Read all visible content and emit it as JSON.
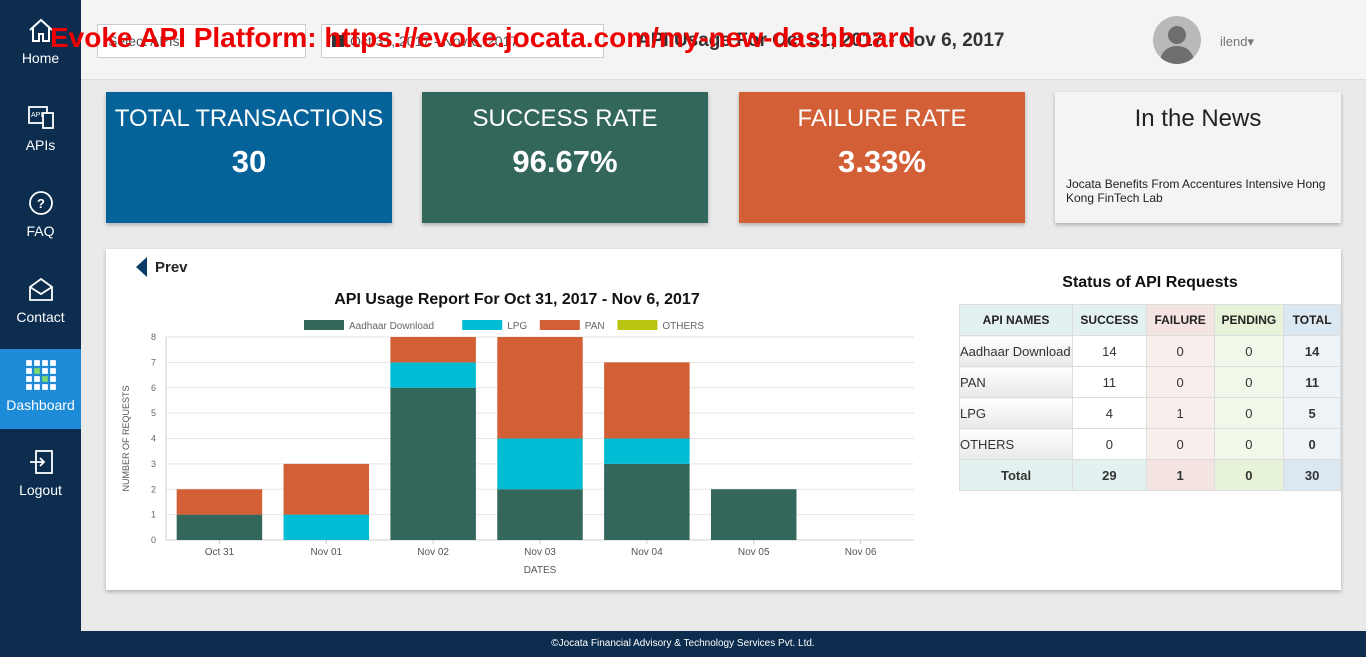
{
  "watermark": "Evoke API Platform: https://evoke.jocata.com/my-new-dashboard",
  "nav": {
    "home": "Home",
    "apis": "APIs",
    "faq": "FAQ",
    "contact": "Contact",
    "dashboard": "Dashboard",
    "logout": "Logout"
  },
  "header": {
    "select_api": "Select APIs",
    "date_range": "Oct 31, 2017 - Nov 6, 2017",
    "title": "API Usage For Oct 31, 2017 - Nov 6, 2017",
    "username": "ilend",
    "user_caret": "▾"
  },
  "cards": {
    "total_title": "TOTAL TRANSACTIONS",
    "total_value": "30",
    "success_title": "SUCCESS RATE",
    "success_value": "96.67%",
    "failure_title": "FAILURE RATE",
    "failure_value": "3.33%",
    "news_title": "In the News",
    "news_item": "Jocata Benefits From Accentures Intensive Hong Kong FinTech Lab"
  },
  "colors": {
    "total_card": "#06639a",
    "success_card": "#33675b",
    "failure_card": "#d25f36",
    "aadhaar": "#33675b",
    "lpg": "#00bcd4",
    "pan": "#d25f36",
    "others": "#b9c410"
  },
  "prev_label": "Prev",
  "chart_data": {
    "type": "bar",
    "stacked": true,
    "title": "API Usage Report For Oct 31, 2017 - Nov 6, 2017",
    "xlabel": "DATES",
    "ylabel": "NUMBER OF REQUESTS",
    "ylim": [
      0,
      8
    ],
    "yticks": [
      "0",
      "1",
      "2",
      "3",
      "4",
      "5",
      "6",
      "7",
      "8"
    ],
    "grid": true,
    "legend_position": "top",
    "categories": [
      "Oct 31",
      "Nov 01",
      "Nov 02",
      "Nov 03",
      "Nov 04",
      "Nov 05",
      "Nov 06"
    ],
    "series": [
      {
        "name": "Aadhaar Download",
        "color": "#33675b",
        "values": [
          1,
          0,
          6,
          2,
          3,
          2,
          0
        ]
      },
      {
        "name": "LPG",
        "color": "#00bcd4",
        "values": [
          0,
          1,
          1,
          2,
          1,
          0,
          0
        ]
      },
      {
        "name": "PAN",
        "color": "#d25f36",
        "values": [
          1,
          2,
          1,
          4,
          3,
          0,
          0
        ]
      },
      {
        "name": "OTHERS",
        "color": "#b9c410",
        "values": [
          0,
          0,
          0,
          0,
          0,
          0,
          0
        ]
      }
    ]
  },
  "status": {
    "title": "Status of API Requests",
    "headers": [
      "API NAMES",
      "SUCCESS",
      "FAILURE",
      "PENDING",
      "TOTAL"
    ],
    "rows": [
      [
        "Aadhaar Download",
        "14",
        "0",
        "0",
        "14"
      ],
      [
        "PAN",
        "11",
        "0",
        "0",
        "11"
      ],
      [
        "LPG",
        "4",
        "1",
        "0",
        "5"
      ],
      [
        "OTHERS",
        "0",
        "0",
        "0",
        "0"
      ]
    ],
    "total_row": [
      "Total",
      "29",
      "1",
      "0",
      "30"
    ]
  },
  "footer": "©Jocata Financial Advisory & Technology Services Pvt. Ltd."
}
